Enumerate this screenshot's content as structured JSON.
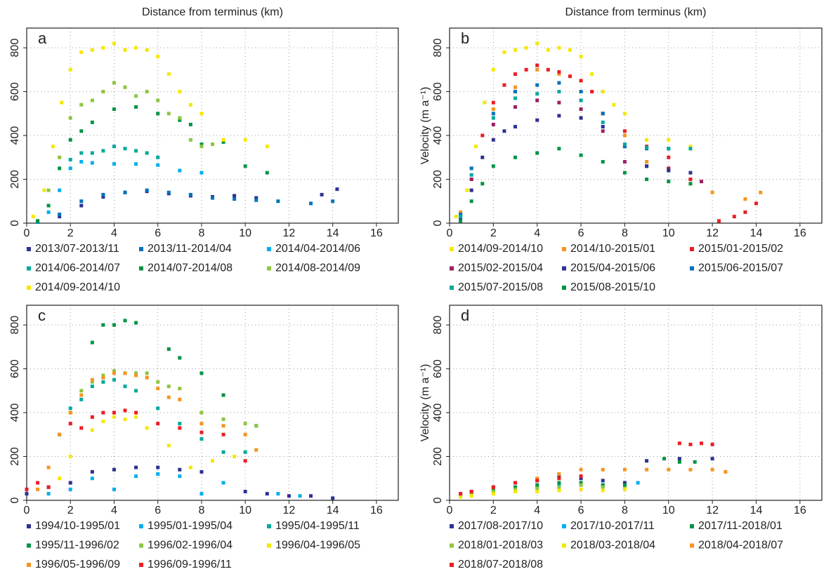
{
  "chart_data": [
    {
      "type": "scatter",
      "title": "a",
      "xlabel": "Distance from terminus (km)",
      "xlim": [
        0,
        17
      ],
      "ylim": [
        0,
        890
      ],
      "xticks": [
        0,
        2,
        4,
        6,
        8,
        10,
        12,
        14,
        16
      ],
      "yticks": [
        0,
        200,
        400,
        600,
        800
      ],
      "grid": true,
      "series": [
        {
          "name": "2013/07-2013/11",
          "color": "#2e3192",
          "x": [
            0.5,
            1.5,
            2.5,
            3.5,
            4.5,
            5.5,
            6.5,
            7.5,
            8.5,
            9.5,
            10.5,
            13.5,
            14.2
          ],
          "values": [
            10,
            30,
            80,
            120,
            140,
            145,
            135,
            125,
            120,
            125,
            115,
            130,
            155
          ]
        },
        {
          "name": "2013/11-2014/04",
          "color": "#0072bc",
          "x": [
            0.5,
            1.5,
            2.5,
            3.5,
            4.5,
            5.5,
            6.5,
            7.5,
            8.5,
            9.5,
            10.5,
            11.5,
            13,
            14
          ],
          "values": [
            5,
            40,
            100,
            130,
            140,
            150,
            140,
            130,
            115,
            110,
            105,
            100,
            90,
            100
          ]
        },
        {
          "name": "2014/04-2014/06",
          "color": "#00aeef",
          "x": [
            0.5,
            1,
            1.5,
            2,
            2.5,
            3,
            4,
            5,
            6,
            7,
            8
          ],
          "values": [
            10,
            50,
            150,
            250,
            280,
            275,
            270,
            270,
            265,
            240,
            230
          ]
        },
        {
          "name": "2014/06-2014/07",
          "color": "#00a99d",
          "x": [
            2,
            2.5,
            3,
            3.5,
            4,
            4.5,
            5,
            5.5,
            6
          ],
          "values": [
            290,
            320,
            320,
            330,
            350,
            340,
            330,
            320,
            300
          ]
        },
        {
          "name": "2014/07-2014/08",
          "color": "#009444",
          "x": [
            0.5,
            1,
            1.5,
            2,
            2.5,
            3,
            4,
            5,
            6,
            7,
            7.5,
            8,
            9,
            10,
            11
          ],
          "values": [
            10,
            80,
            250,
            380,
            420,
            460,
            520,
            530,
            500,
            470,
            450,
            360,
            370,
            260,
            230
          ]
        },
        {
          "name": "2014/08-2014/09",
          "color": "#8dc63f",
          "x": [
            1,
            1.5,
            2,
            2.5,
            3,
            3.5,
            4,
            4.5,
            5,
            5.5,
            6,
            6.5,
            7,
            7.5,
            8,
            8.5
          ],
          "values": [
            150,
            300,
            480,
            540,
            560,
            600,
            640,
            620,
            580,
            600,
            560,
            500,
            480,
            380,
            350,
            360
          ]
        },
        {
          "name": "2014/09-2014/10",
          "color": "#f5e800",
          "x": [
            0.3,
            0.8,
            1.2,
            1.6,
            2,
            2.5,
            3,
            3.5,
            4,
            4.5,
            5,
            5.5,
            6,
            6.5,
            7,
            7.5,
            8,
            9,
            10,
            11
          ],
          "values": [
            30,
            150,
            350,
            550,
            700,
            780,
            790,
            800,
            820,
            790,
            800,
            790,
            760,
            680,
            600,
            540,
            500,
            380,
            380,
            350
          ]
        }
      ]
    },
    {
      "type": "scatter",
      "title": "b",
      "xlabel": "Distance from terminus (km)",
      "ylabel": "Velocity (m a⁻¹)",
      "xlim": [
        0,
        17
      ],
      "ylim": [
        0,
        890
      ],
      "xticks": [
        0,
        2,
        4,
        6,
        8,
        10,
        12,
        14,
        16
      ],
      "yticks": [
        0,
        200,
        400,
        600,
        800
      ],
      "grid": true,
      "series": [
        {
          "name": "2014/09-2014/10",
          "color": "#f5e800",
          "x": [
            0.3,
            0.8,
            1.2,
            1.6,
            2,
            2.5,
            3,
            3.5,
            4,
            4.5,
            5,
            5.5,
            6,
            6.5,
            7,
            7.5,
            8,
            9,
            10,
            11
          ],
          "values": [
            30,
            150,
            350,
            550,
            700,
            780,
            790,
            800,
            820,
            790,
            800,
            790,
            760,
            680,
            600,
            540,
            500,
            380,
            380,
            350
          ]
        },
        {
          "name": "2014/10-2015/01",
          "color": "#f7941d",
          "x": [
            0.5,
            1,
            2,
            3,
            4,
            5,
            6,
            7,
            8,
            9,
            10,
            11,
            12,
            13.5,
            14.2
          ],
          "values": [
            50,
            250,
            520,
            620,
            700,
            680,
            650,
            500,
            400,
            280,
            250,
            180,
            140,
            110,
            140
          ]
        },
        {
          "name": "2015/01-2015/02",
          "color": "#ed1c24",
          "x": [
            0.5,
            1,
            1.5,
            2,
            2.5,
            3,
            3.5,
            4,
            4.5,
            5,
            5.5,
            6,
            6.5,
            7,
            8,
            9,
            10,
            11,
            12.3,
            13,
            13.5,
            14
          ],
          "values": [
            40,
            200,
            400,
            550,
            630,
            680,
            700,
            720,
            700,
            690,
            670,
            650,
            600,
            500,
            420,
            350,
            300,
            200,
            10,
            30,
            50,
            90
          ]
        },
        {
          "name": "2015/02-2015/04",
          "color": "#9e1f63",
          "x": [
            0.5,
            1,
            2,
            3,
            4,
            5,
            6,
            7,
            8,
            9,
            10,
            11.5
          ],
          "values": [
            30,
            200,
            450,
            530,
            560,
            550,
            520,
            420,
            280,
            260,
            250,
            190
          ]
        },
        {
          "name": "2015/04-2015/06",
          "color": "#2e3192",
          "x": [
            0.5,
            1,
            1.5,
            2,
            2.5,
            3,
            4,
            5,
            6,
            7,
            8,
            9,
            10,
            11
          ],
          "values": [
            20,
            150,
            300,
            380,
            420,
            440,
            470,
            490,
            480,
            440,
            350,
            260,
            240,
            230
          ]
        },
        {
          "name": "2015/06-2015/07",
          "color": "#0072bc",
          "x": [
            0.5,
            1,
            2,
            3,
            4,
            5,
            6,
            7,
            8,
            9,
            10
          ],
          "values": [
            40,
            250,
            500,
            600,
            630,
            640,
            600,
            500,
            350,
            340,
            340
          ]
        },
        {
          "name": "2015/07-2015/08",
          "color": "#00a99d",
          "x": [
            0.5,
            1,
            2,
            3,
            4,
            5,
            6,
            7,
            8,
            9,
            10,
            11
          ],
          "values": [
            30,
            220,
            480,
            570,
            590,
            600,
            560,
            460,
            360,
            345,
            340,
            340
          ]
        },
        {
          "name": "2015/08-2015/10",
          "color": "#009444",
          "x": [
            0.5,
            1,
            1.5,
            2,
            3,
            4,
            5,
            6,
            7,
            8,
            9,
            10,
            11
          ],
          "values": [
            10,
            100,
            180,
            260,
            300,
            320,
            340,
            310,
            280,
            230,
            200,
            190,
            180
          ]
        }
      ]
    },
    {
      "type": "scatter",
      "title": "c",
      "xlim": [
        0,
        17
      ],
      "ylim": [
        0,
        890
      ],
      "xticks": [
        0,
        2,
        4,
        6,
        8,
        10,
        12,
        14,
        16
      ],
      "yticks": [
        0,
        200,
        400,
        600,
        800
      ],
      "grid": true,
      "series": [
        {
          "name": "1994/10-1995/01",
          "color": "#2e3192",
          "x": [
            0,
            1,
            2,
            3,
            4,
            5,
            6,
            7,
            8,
            9,
            10,
            11,
            12,
            13,
            14
          ],
          "values": [
            30,
            60,
            80,
            130,
            140,
            150,
            150,
            140,
            130,
            80,
            40,
            30,
            20,
            20,
            10
          ]
        },
        {
          "name": "1995/01-1995/04",
          "color": "#00aeef",
          "x": [
            1,
            2,
            3,
            4,
            5,
            6,
            7,
            8,
            9,
            11.5,
            12.5
          ],
          "values": [
            30,
            50,
            100,
            50,
            110,
            120,
            110,
            30,
            80,
            30,
            20
          ]
        },
        {
          "name": "1995/04-1995/11",
          "color": "#00a99d",
          "x": [
            1.5,
            2,
            2.5,
            3,
            3.5,
            4,
            4.5,
            5,
            6,
            7,
            8,
            9,
            10
          ],
          "values": [
            300,
            420,
            460,
            520,
            540,
            550,
            520,
            500,
            420,
            350,
            280,
            220,
            220
          ]
        },
        {
          "name": "1995/11-1996/02",
          "color": "#009444",
          "x": [
            3,
            3.5,
            4,
            4.5,
            5,
            6.5,
            7,
            8,
            9,
            10.5
          ],
          "values": [
            720,
            800,
            800,
            820,
            810,
            690,
            650,
            580,
            480,
            340
          ]
        },
        {
          "name": "1996/02-1996/04",
          "color": "#8dc63f",
          "x": [
            2,
            2.5,
            3,
            3.5,
            4,
            4.5,
            5,
            5.5,
            6,
            6.5,
            7,
            8,
            9,
            10,
            10.5
          ],
          "values": [
            400,
            500,
            540,
            570,
            590,
            580,
            580,
            580,
            540,
            520,
            510,
            400,
            370,
            350,
            340
          ]
        },
        {
          "name": "1996/04-1996/05",
          "color": "#f5e800",
          "x": [
            1.5,
            2,
            3,
            3.5,
            4,
            4.5,
            5,
            5.5,
            6.5,
            7.5,
            8.5,
            9.5
          ],
          "values": [
            100,
            200,
            320,
            360,
            380,
            370,
            380,
            330,
            250,
            150,
            180,
            200
          ]
        },
        {
          "name": "1996/05-1996/09",
          "color": "#f7941d",
          "x": [
            0.5,
            1,
            1.5,
            2,
            2.5,
            3,
            3.5,
            4,
            4.5,
            5,
            5.5,
            6,
            6.5,
            7,
            8,
            9,
            10,
            10.5
          ],
          "values": [
            50,
            150,
            300,
            400,
            480,
            550,
            560,
            580,
            580,
            570,
            560,
            510,
            470,
            460,
            350,
            340,
            300,
            230
          ]
        },
        {
          "name": "1996/09-1996/11",
          "color": "#ed1c24",
          "x": [
            0,
            0.5,
            1,
            2,
            2.5,
            3,
            3.5,
            4,
            4.5,
            5,
            6,
            7,
            8,
            9,
            10
          ],
          "values": [
            50,
            80,
            60,
            350,
            330,
            380,
            400,
            400,
            410,
            400,
            350,
            330,
            310,
            300,
            180
          ]
        }
      ]
    },
    {
      "type": "scatter",
      "title": "d",
      "ylabel": "Velocity (m a⁻¹)",
      "xlim": [
        0,
        17
      ],
      "ylim": [
        0,
        890
      ],
      "xticks": [
        0,
        2,
        4,
        6,
        8,
        10,
        12,
        14,
        16
      ],
      "yticks": [
        0,
        200,
        400,
        600,
        800
      ],
      "grid": true,
      "series": [
        {
          "name": "2017/08-2017/10",
          "color": "#2e3192",
          "x": [
            0.5,
            1,
            2,
            3,
            4,
            5,
            6,
            7,
            8,
            9,
            10.5,
            12
          ],
          "values": [
            30,
            40,
            60,
            80,
            90,
            110,
            100,
            90,
            80,
            180,
            190,
            190
          ]
        },
        {
          "name": "2017/10-2017/11",
          "color": "#00aeef",
          "x": [
            0.5,
            1,
            2,
            3,
            4,
            5,
            6,
            7,
            8,
            8.6
          ],
          "values": [
            20,
            30,
            40,
            60,
            60,
            70,
            70,
            65,
            60,
            80
          ]
        },
        {
          "name": "2017/11-2018/01",
          "color": "#009444",
          "x": [
            0.5,
            1,
            2,
            3,
            4,
            5,
            6,
            7,
            8,
            9.8,
            10.5,
            11.2
          ],
          "values": [
            20,
            30,
            50,
            60,
            70,
            80,
            80,
            70,
            70,
            190,
            175,
            175
          ]
        },
        {
          "name": "2018/01-2018/03",
          "color": "#8dc63f",
          "x": [
            0.5,
            1,
            2,
            3,
            4,
            5,
            6,
            7,
            8
          ],
          "values": [
            20,
            30,
            40,
            50,
            55,
            60,
            70,
            60,
            55
          ]
        },
        {
          "name": "2018/03-2018/04",
          "color": "#f5e800",
          "x": [
            0.5,
            1,
            2,
            3,
            4,
            5,
            6,
            7,
            8
          ],
          "values": [
            15,
            20,
            30,
            40,
            40,
            45,
            50,
            45,
            50
          ]
        },
        {
          "name": "2018/04-2018/07",
          "color": "#f7941d",
          "x": [
            0.5,
            1,
            2,
            3,
            4,
            5,
            6,
            7,
            8,
            9,
            10,
            11,
            12,
            12.6
          ],
          "values": [
            30,
            40,
            60,
            80,
            100,
            120,
            140,
            140,
            140,
            140,
            140,
            140,
            140,
            130
          ]
        },
        {
          "name": "2018/07-2018/08",
          "color": "#ed1c24",
          "x": [
            0.5,
            1,
            2,
            3,
            4,
            5,
            6,
            10.5,
            11,
            11.5,
            12
          ],
          "values": [
            30,
            40,
            60,
            80,
            90,
            100,
            110,
            260,
            255,
            260,
            255
          ]
        }
      ]
    }
  ]
}
